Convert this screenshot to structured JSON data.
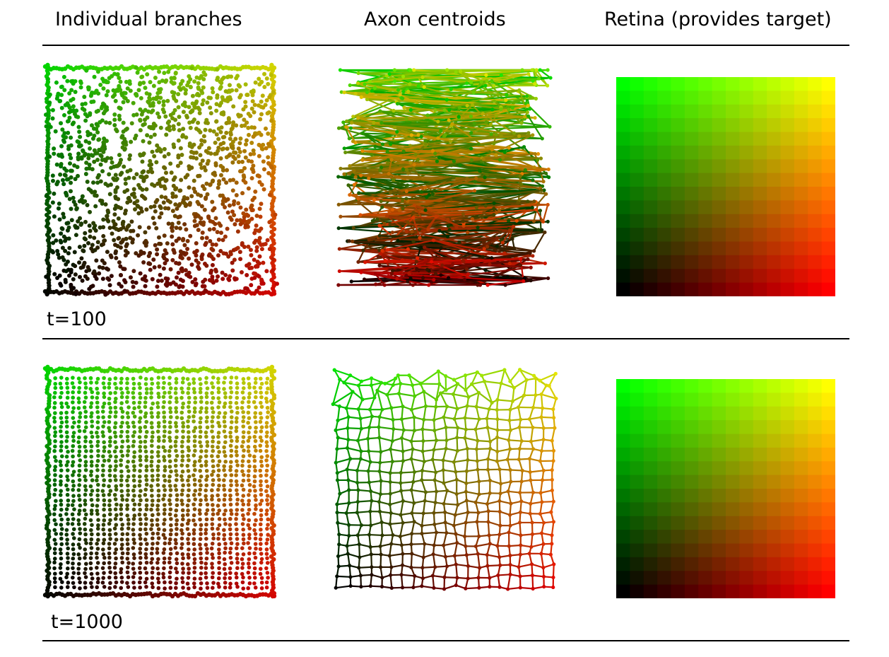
{
  "headers": {
    "branches": "Individual branches",
    "centroids": "Axon centroids",
    "retina": "Retina (provides target)"
  },
  "rows": [
    {
      "time_label": "t=100"
    },
    {
      "time_label": "t=1000"
    }
  ],
  "colors": {
    "top_left": "#00ff00",
    "top_right": "#ffff00",
    "bottom_left": "#000000",
    "bottom_right": "#ff0000"
  }
}
